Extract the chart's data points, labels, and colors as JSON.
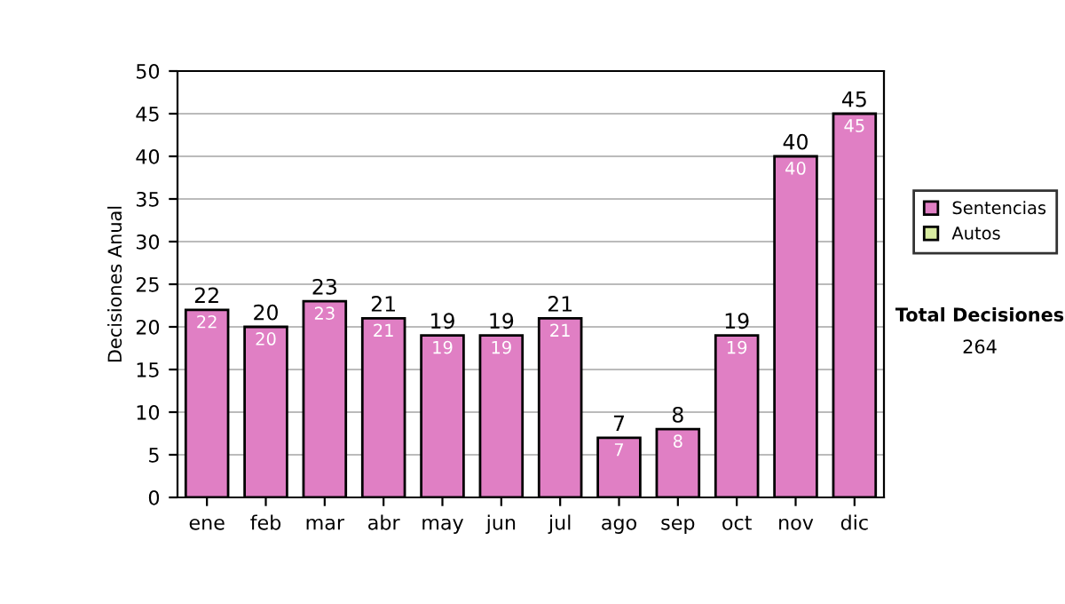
{
  "chart_data": {
    "type": "bar",
    "stacked": true,
    "ylabel": "Decisiones Anual",
    "categories": [
      "ene",
      "feb",
      "mar",
      "abr",
      "may",
      "jun",
      "jul",
      "ago",
      "sep",
      "oct",
      "nov",
      "dic"
    ],
    "series": [
      {
        "name": "Sentencias",
        "color": "#e07fc4",
        "values": [
          22,
          20,
          23,
          21,
          19,
          19,
          21,
          7,
          8,
          19,
          40,
          45
        ]
      },
      {
        "name": "Autos",
        "color": "#d8eca0",
        "values": [
          null,
          null,
          null,
          null,
          null,
          null,
          null,
          null,
          null,
          null,
          null,
          null
        ]
      }
    ],
    "data_labels": true,
    "totals": [
      "22",
      "20",
      "23",
      "21",
      "19",
      "19",
      "21",
      "7",
      "8",
      "19",
      "40",
      "45"
    ],
    "ylim": [
      0,
      50
    ],
    "yticks": [
      0,
      5,
      10,
      15,
      20,
      25,
      30,
      35,
      40,
      45,
      50
    ],
    "grid": "y",
    "legend": "right",
    "annotations": [
      "Total Decisiones",
      "264"
    ]
  }
}
